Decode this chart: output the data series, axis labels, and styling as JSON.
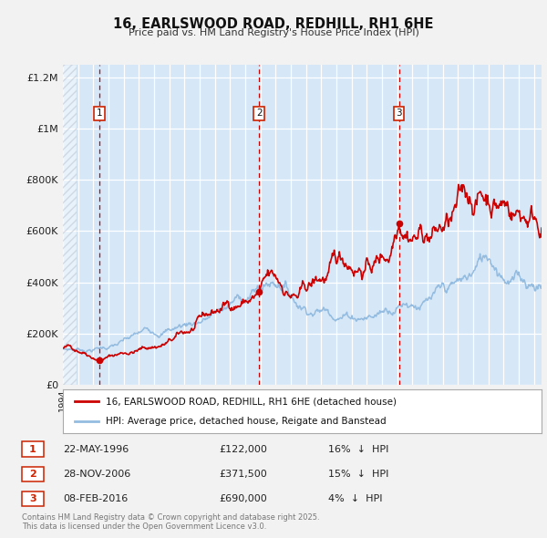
{
  "title": "16, EARLSWOOD ROAD, REDHILL, RH1 6HE",
  "subtitle": "Price paid vs. HM Land Registry's House Price Index (HPI)",
  "hpi_label": "HPI: Average price, detached house, Reigate and Banstead",
  "price_label": "16, EARLSWOOD ROAD, REDHILL, RH1 6HE (detached house)",
  "bg_color": "#d6e8f7",
  "fig_bg_color": "#f2f2f2",
  "legend_bg": "#ffffff",
  "hpi_color": "#94bce0",
  "price_color": "#cc0000",
  "vline_color": "#cc0000",
  "grid_color": "#ffffff",
  "label_box_color": "#cc2200",
  "ylim": [
    0,
    1250000
  ],
  "yticks": [
    0,
    200000,
    400000,
    600000,
    800000,
    1000000,
    1200000
  ],
  "ytick_labels": [
    "£0",
    "£200K",
    "£400K",
    "£600K",
    "£800K",
    "£1M",
    "£1.2M"
  ],
  "transactions": [
    {
      "num": 1,
      "date_str": "22-MAY-1996",
      "date_x": 1996.38,
      "price": 122000,
      "pct": "16%",
      "dir": "↓"
    },
    {
      "num": 2,
      "date_str": "28-NOV-2006",
      "date_x": 2006.91,
      "price": 371500,
      "pct": "15%",
      "dir": "↓"
    },
    {
      "num": 3,
      "date_str": "08-FEB-2016",
      "date_x": 2016.11,
      "price": 690000,
      "pct": "4%",
      "dir": "↓"
    }
  ],
  "footer": "Contains HM Land Registry data © Crown copyright and database right 2025.\nThis data is licensed under the Open Government Licence v3.0.",
  "xmin": 1994.0,
  "xmax": 2025.5
}
